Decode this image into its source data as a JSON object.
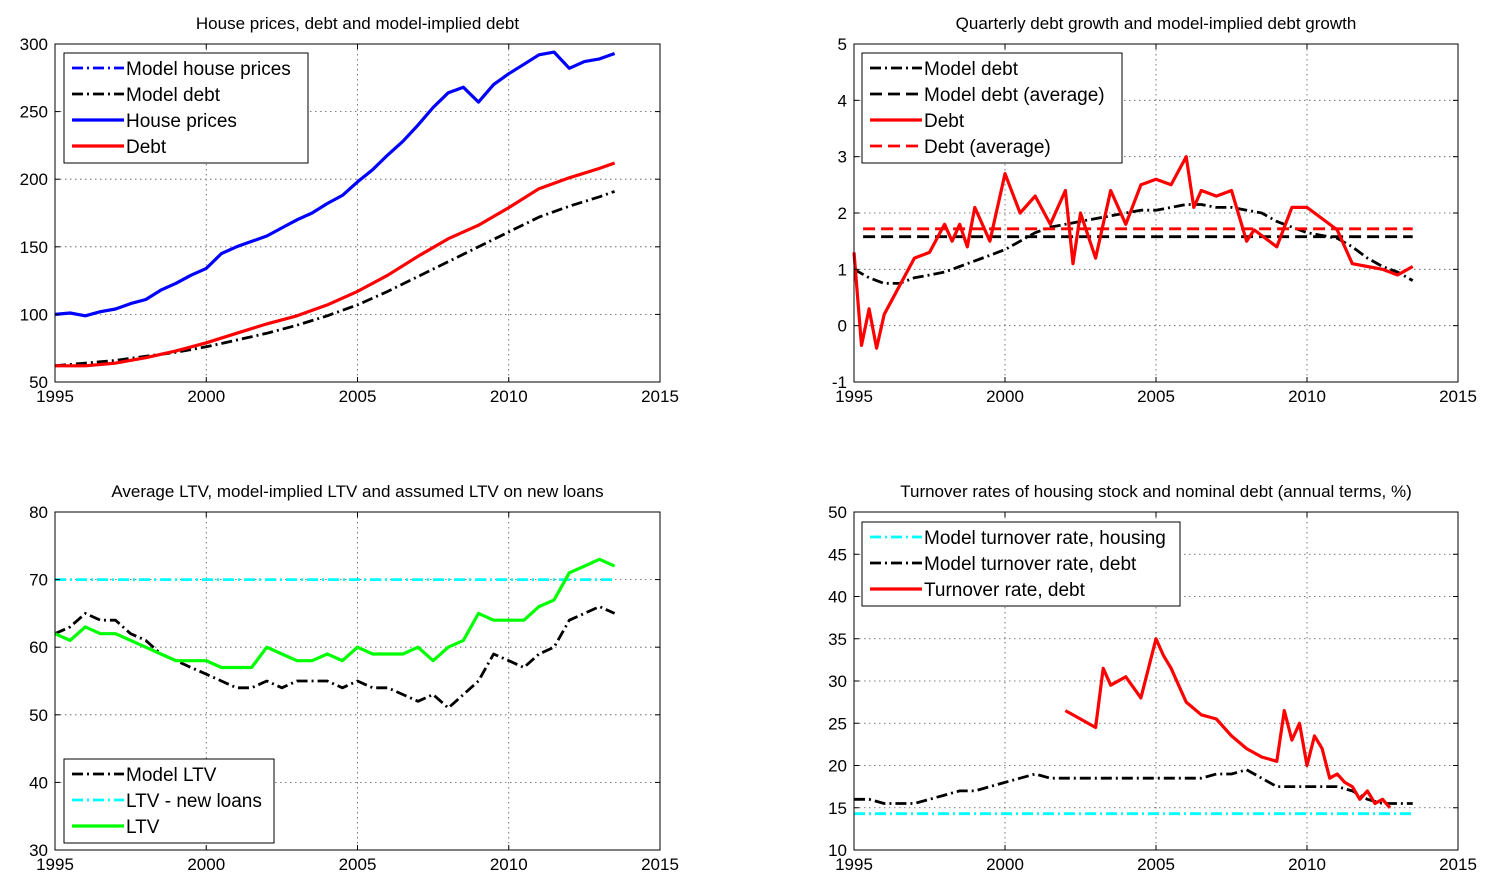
{
  "chart_data": [
    {
      "type": "line",
      "title": "House prices, debt and model-implied debt",
      "xlim": [
        1995,
        2015
      ],
      "ylim": [
        50,
        300
      ],
      "xticks": [
        1995,
        2000,
        2005,
        2010,
        2015
      ],
      "yticks": [
        50,
        100,
        150,
        200,
        250,
        300
      ],
      "grid": true,
      "legend": "top-left",
      "series": [
        {
          "name": "Model house prices",
          "color": "#0000ff",
          "style": "dashdot",
          "x": [],
          "y": []
        },
        {
          "name": "Model debt",
          "color": "#000000",
          "style": "dashdot",
          "x": [
            1995,
            1996,
            1997,
            1998,
            1999,
            2000,
            2001,
            2002,
            2003,
            2004,
            2005,
            2006,
            2007,
            2008,
            2009,
            2010,
            2011,
            2012,
            2013,
            2013.5
          ],
          "y": [
            62,
            64,
            66,
            69,
            72,
            76,
            81,
            86,
            92,
            99,
            107,
            117,
            128,
            139,
            150,
            161,
            172,
            180,
            187,
            191
          ]
        },
        {
          "name": "House prices",
          "color": "#0000ff",
          "style": "solid",
          "x": [
            1995,
            1995.5,
            1996,
            1996.5,
            1997,
            1997.5,
            1998,
            1998.5,
            1999,
            1999.5,
            2000,
            2000.5,
            2001,
            2001.5,
            2002,
            2002.5,
            2003,
            2003.5,
            2004,
            2004.5,
            2005,
            2005.5,
            2006,
            2006.5,
            2007,
            2007.5,
            2008,
            2008.5,
            2009,
            2009.5,
            2010,
            2010.5,
            2011,
            2011.5,
            2012,
            2012.5,
            2013,
            2013.5
          ],
          "y": [
            100,
            101,
            99,
            102,
            104,
            108,
            111,
            118,
            123,
            129,
            134,
            145,
            150,
            154,
            158,
            164,
            170,
            175,
            182,
            188,
            198,
            207,
            218,
            228,
            240,
            253,
            264,
            268,
            257,
            270,
            278,
            285,
            292,
            294,
            282,
            287,
            289,
            293
          ]
        },
        {
          "name": "Debt",
          "color": "#ff0000",
          "style": "solid",
          "x": [
            1995,
            1996,
            1997,
            1998,
            1999,
            2000,
            2001,
            2002,
            2003,
            2004,
            2005,
            2006,
            2007,
            2008,
            2009,
            2010,
            2011,
            2012,
            2013,
            2013.5
          ],
          "y": [
            62,
            62,
            64,
            68,
            73,
            79,
            86,
            93,
            99,
            107,
            117,
            129,
            143,
            156,
            166,
            179,
            193,
            201,
            208,
            212
          ]
        }
      ]
    },
    {
      "type": "line",
      "title": "Quarterly debt growth and model-implied debt growth",
      "xlim": [
        1995,
        2015
      ],
      "ylim": [
        -1,
        5
      ],
      "xticks": [
        1995,
        2000,
        2005,
        2010,
        2015
      ],
      "yticks": [
        -1,
        0,
        1,
        2,
        3,
        4,
        5
      ],
      "grid": true,
      "legend": "top-left",
      "series": [
        {
          "name": "Model debt",
          "color": "#000000",
          "style": "dashdot",
          "x": [
            1995,
            1995.5,
            1996,
            1996.5,
            1997,
            1997.5,
            1998,
            1998.5,
            1999,
            1999.5,
            2000,
            2000.5,
            2001,
            2001.5,
            2002,
            2002.5,
            2003,
            2003.5,
            2004,
            2004.5,
            2005,
            2005.5,
            2006,
            2006.5,
            2007,
            2007.5,
            2008,
            2008.5,
            2009,
            2009.5,
            2010,
            2010.5,
            2011,
            2011.5,
            2012,
            2012.5,
            2013,
            2013.5
          ],
          "y": [
            1.0,
            0.85,
            0.75,
            0.75,
            0.85,
            0.9,
            0.95,
            1.05,
            1.15,
            1.25,
            1.35,
            1.5,
            1.65,
            1.75,
            1.8,
            1.85,
            1.9,
            1.95,
            2.0,
            2.05,
            2.05,
            2.1,
            2.15,
            2.15,
            2.1,
            2.1,
            2.05,
            2.0,
            1.85,
            1.75,
            1.65,
            1.6,
            1.55,
            1.4,
            1.2,
            1.05,
            0.95,
            0.8
          ]
        },
        {
          "name": "Model debt (average)",
          "color": "#000000",
          "style": "dashed",
          "x": [
            1995.3,
            2013.5
          ],
          "y": [
            1.58,
            1.58
          ]
        },
        {
          "name": "Debt",
          "color": "#ff0000",
          "style": "solid",
          "x": [
            1995,
            1995.25,
            1995.5,
            1995.75,
            1996,
            1996.5,
            1997,
            1997.5,
            1998,
            1998.25,
            1998.5,
            1998.75,
            1999,
            1999.5,
            2000,
            2000.5,
            2001,
            2001.5,
            2002,
            2002.25,
            2002.5,
            2003,
            2003.5,
            2004,
            2004.5,
            2005,
            2005.5,
            2006,
            2006.25,
            2006.5,
            2007,
            2007.5,
            2008,
            2008.25,
            2008.5,
            2009,
            2009.5,
            2010,
            2010.5,
            2011,
            2011.5,
            2012,
            2012.5,
            2013,
            2013.5
          ],
          "y": [
            1.3,
            -0.35,
            0.3,
            -0.4,
            0.2,
            0.7,
            1.2,
            1.3,
            1.8,
            1.5,
            1.8,
            1.4,
            2.1,
            1.5,
            2.7,
            2.0,
            2.3,
            1.8,
            2.4,
            1.1,
            2.0,
            1.2,
            2.4,
            1.8,
            2.5,
            2.6,
            2.5,
            3.0,
            2.1,
            2.4,
            2.3,
            2.4,
            1.5,
            1.7,
            1.6,
            1.4,
            2.1,
            2.1,
            1.9,
            1.7,
            1.1,
            1.05,
            1.0,
            0.9,
            1.05
          ]
        },
        {
          "name": "Debt (average)",
          "color": "#ff0000",
          "style": "dashed",
          "x": [
            1995.3,
            2013.5
          ],
          "y": [
            1.72,
            1.72
          ]
        }
      ]
    },
    {
      "type": "line",
      "title": "Average LTV, model-implied LTV and assumed LTV on new loans",
      "xlim": [
        1995,
        2015
      ],
      "ylim": [
        30,
        80
      ],
      "xticks": [
        1995,
        2000,
        2005,
        2010,
        2015
      ],
      "yticks": [
        30,
        40,
        50,
        60,
        70,
        80
      ],
      "grid": true,
      "legend": "bottom-left",
      "series": [
        {
          "name": "Model LTV",
          "color": "#000000",
          "style": "dashdot",
          "x": [
            1995,
            1995.5,
            1996,
            1996.5,
            1997,
            1997.5,
            1998,
            1998.5,
            1999,
            1999.5,
            2000,
            2000.5,
            2001,
            2001.5,
            2002,
            2002.5,
            2003,
            2003.5,
            2004,
            2004.5,
            2005,
            2005.5,
            2006,
            2006.5,
            2007,
            2007.5,
            2008,
            2008.5,
            2009,
            2009.5,
            2010,
            2010.5,
            2011,
            2011.5,
            2012,
            2012.5,
            2013,
            2013.5
          ],
          "y": [
            62,
            63,
            65,
            64,
            64,
            62,
            61,
            59,
            58,
            57,
            56,
            55,
            54,
            54,
            55,
            54,
            55,
            55,
            55,
            54,
            55,
            54,
            54,
            53,
            52,
            53,
            51,
            53,
            55,
            59,
            58,
            57,
            59,
            60,
            64,
            65,
            66,
            65
          ]
        },
        {
          "name": "LTV - new loans",
          "color": "#00ffff",
          "style": "dashdot",
          "x": [
            1995,
            2013.5
          ],
          "y": [
            70,
            70
          ]
        },
        {
          "name": "LTV",
          "color": "#00ff00",
          "style": "solid",
          "x": [
            1995,
            1995.5,
            1996,
            1996.5,
            1997,
            1997.5,
            1998,
            1998.5,
            1999,
            1999.5,
            2000,
            2000.5,
            2001,
            2001.5,
            2002,
            2002.5,
            2003,
            2003.5,
            2004,
            2004.5,
            2005,
            2005.5,
            2006,
            2006.5,
            2007,
            2007.5,
            2008,
            2008.5,
            2009,
            2009.5,
            2010,
            2010.5,
            2011,
            2011.5,
            2012,
            2012.5,
            2013,
            2013.5
          ],
          "y": [
            62,
            61,
            63,
            62,
            62,
            61,
            60,
            59,
            58,
            58,
            58,
            57,
            57,
            57,
            60,
            59,
            58,
            58,
            59,
            58,
            60,
            59,
            59,
            59,
            60,
            58,
            60,
            61,
            65,
            64,
            64,
            64,
            66,
            67,
            71,
            72,
            73,
            72
          ]
        }
      ]
    },
    {
      "type": "line",
      "title": "Turnover rates of housing stock and nominal debt (annual terms, %)",
      "xlim": [
        1995,
        2015
      ],
      "ylim": [
        10,
        50
      ],
      "xticks": [
        1995,
        2000,
        2005,
        2010,
        2015
      ],
      "yticks": [
        10,
        15,
        20,
        25,
        30,
        35,
        40,
        45,
        50
      ],
      "grid": true,
      "legend": "top-left",
      "series": [
        {
          "name": "Model turnover rate, housing",
          "color": "#00ffff",
          "style": "dashdot",
          "x": [
            1995,
            2013.5
          ],
          "y": [
            14.3,
            14.3
          ]
        },
        {
          "name": "Model turnover rate, debt",
          "color": "#000000",
          "style": "dashdot",
          "x": [
            1995,
            1995.5,
            1996,
            1996.5,
            1997,
            1997.5,
            1998,
            1998.5,
            1999,
            1999.5,
            2000,
            2000.5,
            2001,
            2001.5,
            2002,
            2002.5,
            2003,
            2003.5,
            2004,
            2004.5,
            2005,
            2005.5,
            2006,
            2006.5,
            2007,
            2007.5,
            2008,
            2008.5,
            2009,
            2009.5,
            2010,
            2010.5,
            2011,
            2011.5,
            2012,
            2012.5,
            2013,
            2013.5
          ],
          "y": [
            16,
            16,
            15.5,
            15.5,
            15.5,
            16,
            16.5,
            17,
            17,
            17.5,
            18,
            18.5,
            19,
            18.5,
            18.5,
            18.5,
            18.5,
            18.5,
            18.5,
            18.5,
            18.5,
            18.5,
            18.5,
            18.5,
            19,
            19,
            19.5,
            18.5,
            17.5,
            17.5,
            17.5,
            17.5,
            17.5,
            17,
            16,
            15.5,
            15.5,
            15.5
          ]
        },
        {
          "name": "Turnover rate, debt",
          "color": "#ff0000",
          "style": "solid",
          "x": [
            2002,
            2002.5,
            2003,
            2003.25,
            2003.5,
            2004,
            2004.5,
            2005,
            2005.25,
            2005.5,
            2006,
            2006.5,
            2007,
            2007.5,
            2008,
            2008.5,
            2009,
            2009.25,
            2009.5,
            2009.75,
            2010,
            2010.25,
            2010.5,
            2010.75,
            2011,
            2011.25,
            2011.5,
            2011.75,
            2012,
            2012.25,
            2012.5,
            2012.75
          ],
          "y": [
            26.5,
            25.5,
            24.5,
            31.5,
            29.5,
            30.5,
            28,
            35,
            33,
            31.5,
            27.5,
            26,
            25.5,
            23.5,
            22,
            21,
            20.5,
            26.5,
            23,
            25,
            20,
            23.5,
            22,
            18.5,
            19,
            18,
            17.5,
            16,
            17,
            15.5,
            16,
            15
          ]
        }
      ]
    }
  ]
}
